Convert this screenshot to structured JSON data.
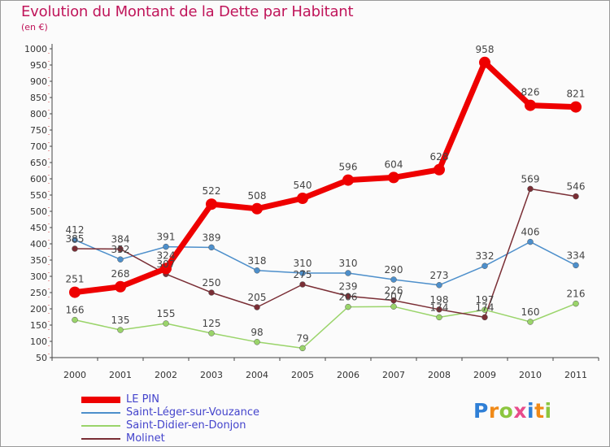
{
  "title": "Evolution du Montant de la Dette par Habitant",
  "unit_label": "(en €)",
  "logo": {
    "letters": [
      {
        "ch": "P",
        "color": "#2f7fd6"
      },
      {
        "ch": "r",
        "color": "#f08a18"
      },
      {
        "ch": "o",
        "color": "#8cc63f"
      },
      {
        "ch": "x",
        "color": "#e84c8b"
      },
      {
        "ch": "i",
        "color": "#2f7fd6"
      },
      {
        "ch": "t",
        "color": "#f08a18"
      },
      {
        "ch": "i",
        "color": "#8cc63f"
      }
    ]
  },
  "chart_data": {
    "type": "line",
    "x": [
      "2000",
      "2001",
      "2002",
      "2003",
      "2004",
      "2005",
      "2006",
      "2007",
      "2008",
      "2009",
      "2010",
      "2011"
    ],
    "ylim": [
      50,
      1000
    ],
    "yticks": [
      50,
      100,
      150,
      200,
      250,
      300,
      350,
      400,
      450,
      500,
      550,
      600,
      650,
      700,
      750,
      800,
      850,
      900,
      950,
      1000
    ],
    "grid": false,
    "legend_position": "bottom-left",
    "series": [
      {
        "name": "Saint-Léger-sur-Vouzance",
        "color": "#4d8fcb",
        "values": [
          412,
          352,
          391,
          389,
          318,
          310,
          310,
          290,
          273,
          332,
          406,
          334
        ]
      },
      {
        "name": "Saint-Didier-en-Donjon",
        "color": "#9ad46a",
        "values": [
          166,
          135,
          155,
          125,
          98,
          79,
          206,
          207,
          174,
          197,
          160,
          216
        ]
      },
      {
        "name": "Molinet",
        "color": "#7a2e35",
        "values": [
          385,
          384,
          307,
          250,
          205,
          275,
          239,
          226,
          198,
          174,
          569,
          546
        ]
      },
      {
        "name": "LE PIN",
        "color": "#ee0000",
        "values": [
          251,
          268,
          324,
          522,
          508,
          540,
          596,
          604,
          628,
          958,
          826,
          821
        ]
      }
    ]
  }
}
